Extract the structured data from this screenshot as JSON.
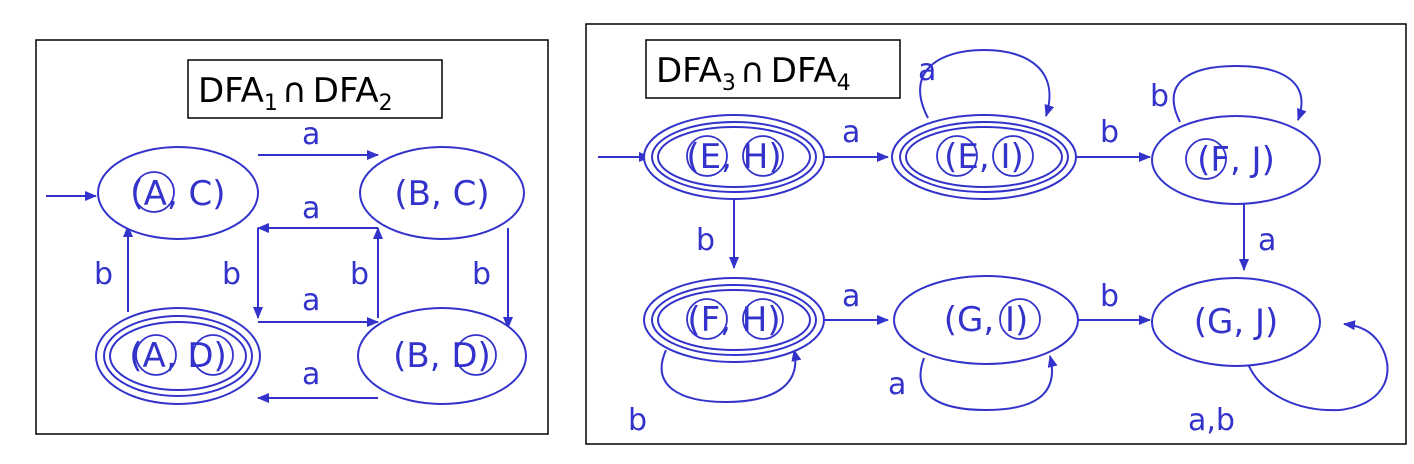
{
  "diagram1": {
    "title_base": "DFA",
    "title_sub_left": "1",
    "title_op": "∩",
    "title_sub_right": "2",
    "states": [
      "(A, C)",
      "(B, C)",
      "(A, D)",
      "(B, D)"
    ],
    "edge_labels": [
      "a",
      "a",
      "b",
      "b",
      "b",
      "b",
      "a",
      "a"
    ]
  },
  "diagram2": {
    "title_base": "DFA",
    "title_sub_left": "3",
    "title_op": "∩",
    "title_sub_right": "4",
    "states": [
      "(E, H)",
      "(E, I)",
      "(F, J)",
      "(F, H)",
      "(G, I)",
      "(G, J)"
    ],
    "edge_labels": [
      "a",
      "a",
      "b",
      "b",
      "b",
      "a",
      "a",
      "b",
      "a",
      "b",
      "a,b"
    ]
  }
}
